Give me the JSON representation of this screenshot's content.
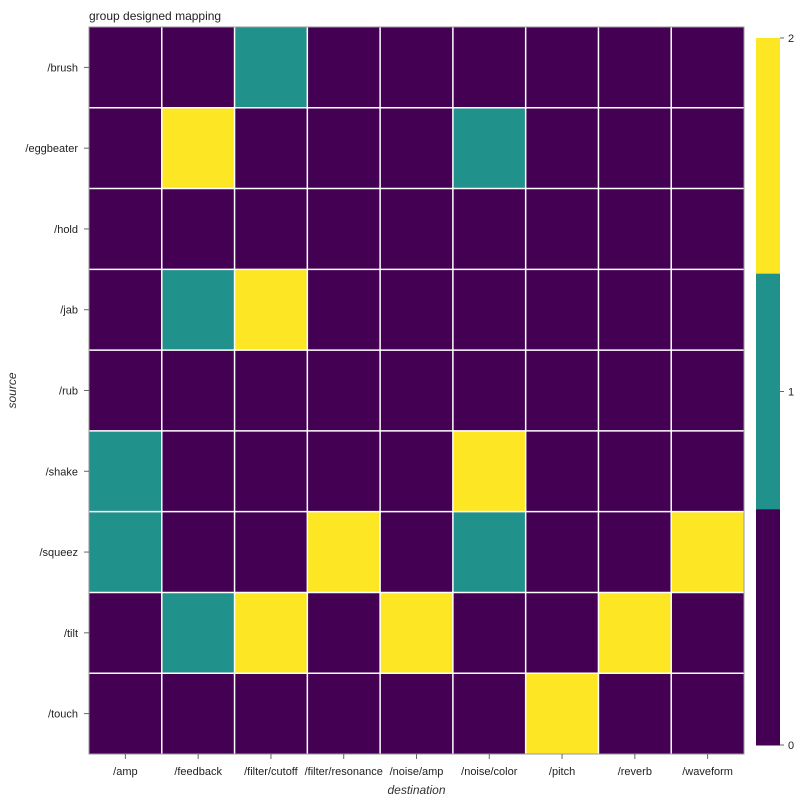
{
  "chart_data": {
    "type": "heatmap",
    "title": "group designed mapping",
    "xlabel": "destination",
    "ylabel": "source",
    "x_categories": [
      "/amp",
      "/feedback",
      "/filter/cutoff",
      "/filter/resonance",
      "/noise/amp",
      "/noise/color",
      "/pitch",
      "/reverb",
      "/waveform"
    ],
    "y_categories": [
      "/brush",
      "/eggbeater",
      "/hold",
      "/jab",
      "/rub",
      "/shake",
      "/squeez",
      "/tilt",
      "/touch"
    ],
    "values": [
      [
        0,
        0,
        1,
        0,
        0,
        0,
        0,
        0,
        0
      ],
      [
        0,
        2,
        0,
        0,
        0,
        1,
        0,
        0,
        0
      ],
      [
        0,
        0,
        0,
        0,
        0,
        0,
        0,
        0,
        0
      ],
      [
        0,
        1,
        2,
        0,
        0,
        0,
        0,
        0,
        0
      ],
      [
        0,
        0,
        0,
        0,
        0,
        0,
        0,
        0,
        0
      ],
      [
        1,
        0,
        0,
        0,
        0,
        2,
        0,
        0,
        0
      ],
      [
        1,
        0,
        0,
        2,
        0,
        1,
        0,
        0,
        2
      ],
      [
        0,
        1,
        2,
        0,
        2,
        0,
        0,
        2,
        0
      ],
      [
        0,
        0,
        0,
        0,
        0,
        0,
        2,
        0,
        0
      ]
    ],
    "color_scale": {
      "domain": [
        0,
        1,
        2
      ],
      "colors": [
        "#440154",
        "#21918c",
        "#fde725"
      ],
      "tick_labels": [
        "0",
        "1",
        "2"
      ]
    },
    "legend_placement": "right",
    "grid_lines_color": "#ffffff"
  }
}
